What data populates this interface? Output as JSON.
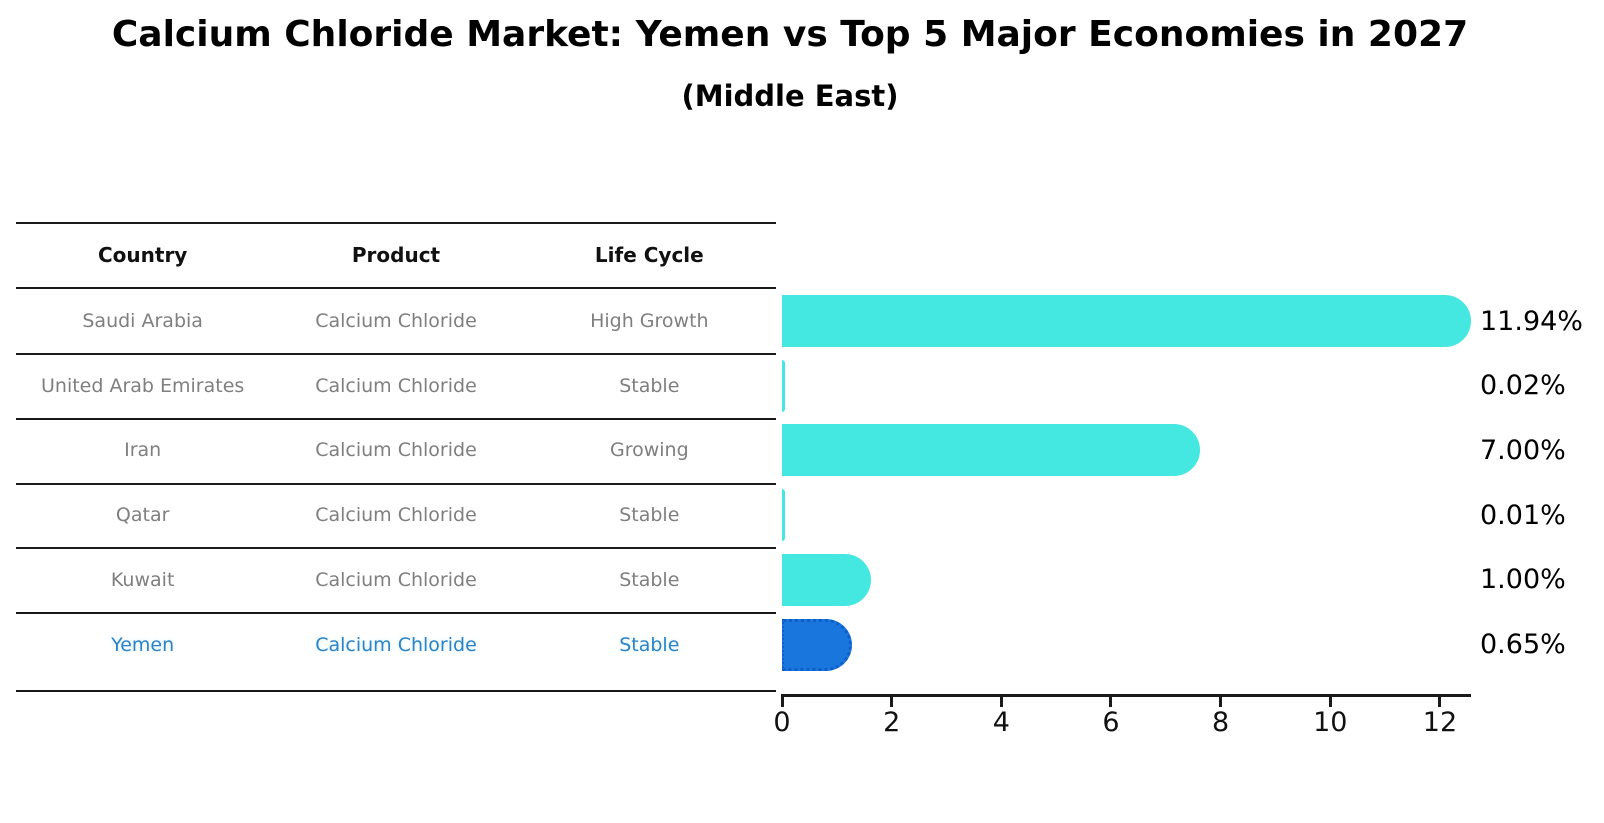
{
  "title": "Calcium Chloride Market: Yemen vs Top 5 Major Economies in 2027",
  "subtitle": "(Middle East)",
  "table": {
    "headers": [
      "Country",
      "Product",
      "Life Cycle"
    ],
    "rows": [
      {
        "country": "Saudi Arabia",
        "product": "Calcium Chloride",
        "life_cycle": "High Growth",
        "highlight": false
      },
      {
        "country": "United Arab Emirates",
        "product": "Calcium Chloride",
        "life_cycle": "Stable",
        "highlight": false
      },
      {
        "country": "Iran",
        "product": "Calcium Chloride",
        "life_cycle": "Growing",
        "highlight": false
      },
      {
        "country": "Qatar",
        "product": "Calcium Chloride",
        "life_cycle": "Stable",
        "highlight": false
      },
      {
        "country": "Kuwait",
        "product": "Calcium Chloride",
        "life_cycle": "Stable",
        "highlight": false
      },
      {
        "country": "Yemen",
        "product": "Calcium Chloride",
        "life_cycle": "Stable",
        "highlight": true
      }
    ]
  },
  "chart_data": {
    "type": "bar",
    "orientation": "horizontal",
    "title": "Calcium Chloride Market: Yemen vs Top 5 Major Economies in 2027",
    "subtitle": "(Middle East)",
    "categories": [
      "Saudi Arabia",
      "United Arab Emirates",
      "Iran",
      "Qatar",
      "Kuwait",
      "Yemen"
    ],
    "values": [
      11.94,
      0.02,
      7.0,
      0.01,
      1.0,
      0.65
    ],
    "value_labels": [
      "11.94%",
      "0.02%",
      "7.00%",
      "0.01%",
      "1.00%",
      "0.65%"
    ],
    "xlabel": "",
    "ylabel": "",
    "xlim": [
      0,
      12.55
    ],
    "xticks": [
      0,
      2,
      4,
      6,
      8,
      10,
      12
    ],
    "grid": false,
    "legend": false,
    "bar_color": "#45e8e1",
    "highlight_bar_color": "#1976dc",
    "highlight_index": 5
  }
}
